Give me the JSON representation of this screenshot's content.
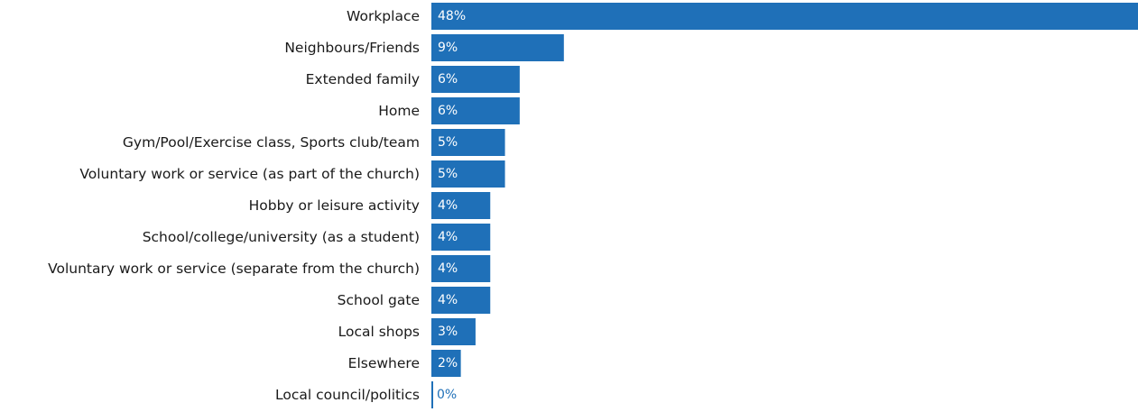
{
  "chart_data": {
    "type": "bar",
    "orientation": "horizontal",
    "categories": [
      "Workplace",
      "Neighbours/Friends",
      "Extended family",
      "Home",
      "Gym/Pool/Exercise class, Sports club/team",
      "Voluntary work or service (as part of the church)",
      "Hobby or leisure activity",
      "School/college/university (as a student)",
      "Voluntary work or service (separate from the church)",
      "School gate",
      "Local shops",
      "Elsewhere",
      "Local council/politics"
    ],
    "values": [
      48,
      9,
      6,
      6,
      5,
      5,
      4,
      4,
      4,
      4,
      3,
      2,
      0
    ],
    "value_labels": [
      "48%",
      "9%",
      "6%",
      "6%",
      "5%",
      "5%",
      "4%",
      "4%",
      "4%",
      "4%",
      "3%",
      "2%",
      "0%"
    ],
    "unit": "%",
    "xlim": [
      0,
      48
    ],
    "grid": false,
    "legend": "none",
    "colors": {
      "bar": "#1f70b8",
      "label_on_bar": "#ffffff",
      "label_outside": "#1f70b8",
      "category_text": "#1a1a1a"
    }
  }
}
